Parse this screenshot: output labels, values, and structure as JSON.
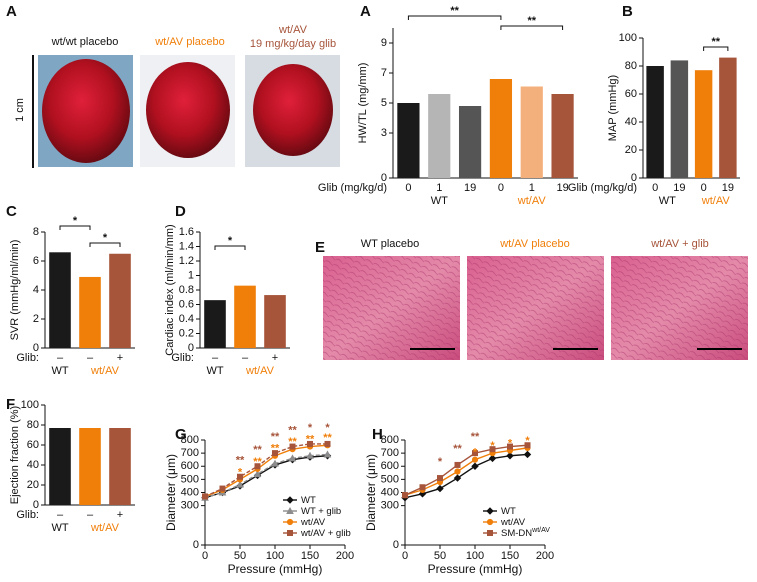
{
  "photos": {
    "panel": "A",
    "captions": [
      "wt/wt placebo",
      "wt/AV placebo",
      "wt/AV",
      "19 mg/kg/day glib"
    ],
    "scale": "1 cm"
  },
  "histology": {
    "panel": "E",
    "captions": [
      "WT placebo",
      "wt/AV placebo",
      "wt/AV + glib"
    ]
  },
  "chart_data": [
    {
      "panel": "A",
      "type": "bar",
      "ylabel": "HW/TL (mg/mm)",
      "xlabel": "Glib (mg/kg/d)",
      "categories": [
        "0",
        "1",
        "19",
        "0",
        "1",
        "19"
      ],
      "groups": [
        "WT",
        "wt/AV"
      ],
      "values": [
        5.0,
        5.6,
        4.8,
        6.6,
        6.1,
        5.6
      ],
      "colors": [
        "#1a1a1a",
        "#b5b5b5",
        "#555555",
        "#f07f0a",
        "#f4b07c",
        "#a6543a"
      ],
      "ylim": [
        0,
        10
      ],
      "yticks": [
        0,
        3,
        5,
        7,
        9
      ],
      "annotations": [
        "**",
        "**"
      ]
    },
    {
      "panel": "B",
      "type": "bar",
      "ylabel": "MAP (mmHg)",
      "xlabel": "Glib (mg/kg/d)",
      "categories": [
        "0",
        "19",
        "0",
        "19"
      ],
      "groups": [
        "WT",
        "wt/AV"
      ],
      "values": [
        80,
        84,
        77,
        86
      ],
      "colors": [
        "#1a1a1a",
        "#555555",
        "#f07f0a",
        "#a6543a"
      ],
      "ylim": [
        0,
        100
      ],
      "yticks": [
        0,
        20,
        40,
        60,
        80,
        100
      ],
      "annotations": [
        "**"
      ]
    },
    {
      "panel": "C",
      "type": "bar",
      "ylabel": "SVR (mmHg/ml/min)",
      "xlabel": "Glib:",
      "categories": [
        "–",
        "–",
        "+"
      ],
      "groups": [
        "WT",
        "wt/AV"
      ],
      "values": [
        6.6,
        4.9,
        6.5
      ],
      "colors": [
        "#1a1a1a",
        "#f07f0a",
        "#a6543a"
      ],
      "ylim": [
        0,
        8
      ],
      "yticks": [
        0,
        2,
        4,
        6,
        8
      ],
      "annotations": [
        "*",
        "*"
      ]
    },
    {
      "panel": "D",
      "type": "bar",
      "ylabel": "Cardiac index (ml/min/mm)",
      "xlabel": "Glib:",
      "categories": [
        "–",
        "–",
        "+"
      ],
      "groups": [
        "WT",
        "wt/AV"
      ],
      "values": [
        0.66,
        0.86,
        0.73
      ],
      "colors": [
        "#1a1a1a",
        "#f07f0a",
        "#a6543a"
      ],
      "ylim": [
        0,
        1.6
      ],
      "yticks": [
        0,
        0.2,
        0.4,
        0.6,
        0.8,
        1.0,
        1.2,
        1.4,
        1.6
      ],
      "annotations": [
        "*"
      ]
    },
    {
      "panel": "F",
      "type": "bar",
      "ylabel": "Ejection fraction (%)",
      "xlabel": "Glib:",
      "categories": [
        "–",
        "–",
        "+"
      ],
      "groups": [
        "WT",
        "wt/AV"
      ],
      "values": [
        77,
        77,
        77
      ],
      "colors": [
        "#1a1a1a",
        "#f07f0a",
        "#a6543a"
      ],
      "ylim": [
        0,
        100
      ],
      "yticks": [
        0,
        20,
        40,
        60,
        80,
        100
      ],
      "annotations": []
    },
    {
      "panel": "G",
      "type": "line",
      "xlabel": "Pressure (mmHg)",
      "ylabel": "Diameter (μm)",
      "x": [
        0,
        25,
        50,
        75,
        100,
        125,
        150,
        175
      ],
      "xlim": [
        0,
        200
      ],
      "xticks": [
        0,
        50,
        100,
        150,
        200
      ],
      "ylim": [
        0,
        800
      ],
      "yticks": [
        0,
        300,
        400,
        500,
        600,
        700,
        800
      ],
      "legend": "lower right",
      "series": [
        {
          "name": "WT",
          "color": "#111111",
          "marker": "diamond",
          "values": [
            360,
            400,
            450,
            530,
            610,
            650,
            670,
            680
          ]
        },
        {
          "name": "WT + glib",
          "color": "#8c8c8c",
          "marker": "triangle",
          "values": [
            360,
            400,
            460,
            540,
            620,
            660,
            680,
            690
          ]
        },
        {
          "name": "wt/AV",
          "color": "#f07f0a",
          "marker": "circle",
          "values": [
            370,
            420,
            500,
            580,
            680,
            730,
            750,
            760
          ]
        },
        {
          "name": "wt/AV + glib",
          "color": "#a6543a",
          "marker": "square",
          "values": [
            370,
            430,
            520,
            600,
            700,
            750,
            770,
            770
          ]
        }
      ],
      "annotations": [
        {
          "x": 50,
          "series": 3,
          "text": "**"
        },
        {
          "x": 75,
          "series": 3,
          "text": "**"
        },
        {
          "x": 100,
          "series": 3,
          "text": "**"
        },
        {
          "x": 125,
          "series": 3,
          "text": "**"
        },
        {
          "x": 150,
          "series": 3,
          "text": "*"
        },
        {
          "x": 175,
          "series": 3,
          "text": "*"
        },
        {
          "x": 50,
          "series": 2,
          "text": "*"
        },
        {
          "x": 75,
          "series": 2,
          "text": "**"
        },
        {
          "x": 100,
          "series": 2,
          "text": "**"
        },
        {
          "x": 125,
          "series": 2,
          "text": "**"
        },
        {
          "x": 150,
          "series": 2,
          "text": "**"
        },
        {
          "x": 175,
          "series": 2,
          "text": "**"
        }
      ]
    },
    {
      "panel": "H",
      "type": "line",
      "xlabel": "Pressure (mmHg)",
      "ylabel": "Diameter (μm)",
      "x": [
        0,
        25,
        50,
        75,
        100,
        125,
        150,
        175
      ],
      "xlim": [
        0,
        200
      ],
      "xticks": [
        0,
        50,
        100,
        150,
        200
      ],
      "ylim": [
        0,
        800
      ],
      "yticks": [
        0,
        300,
        400,
        500,
        600,
        700,
        800
      ],
      "legend": "lower right",
      "series": [
        {
          "name": "WT",
          "color": "#111111",
          "marker": "diamond",
          "values": [
            360,
            390,
            430,
            510,
            600,
            660,
            680,
            690
          ]
        },
        {
          "name": "wt/AV",
          "color": "#f07f0a",
          "marker": "circle",
          "values": [
            380,
            420,
            480,
            560,
            650,
            700,
            720,
            740
          ]
        },
        {
          "name": "SM-DN",
          "name_superscript": "wt/AV",
          "color": "#a6543a",
          "marker": "square",
          "values": [
            380,
            440,
            510,
            610,
            700,
            730,
            750,
            760
          ]
        }
      ],
      "annotations": [
        {
          "x": 50,
          "series": 2,
          "text": "*"
        },
        {
          "x": 75,
          "series": 2,
          "text": "**"
        },
        {
          "x": 100,
          "series": 2,
          "text": "**"
        },
        {
          "x": 100,
          "series": 1,
          "text": "*"
        },
        {
          "x": 125,
          "series": 1,
          "text": "*"
        },
        {
          "x": 150,
          "series": 1,
          "text": "*"
        },
        {
          "x": 175,
          "series": 1,
          "text": "*"
        }
      ]
    }
  ]
}
